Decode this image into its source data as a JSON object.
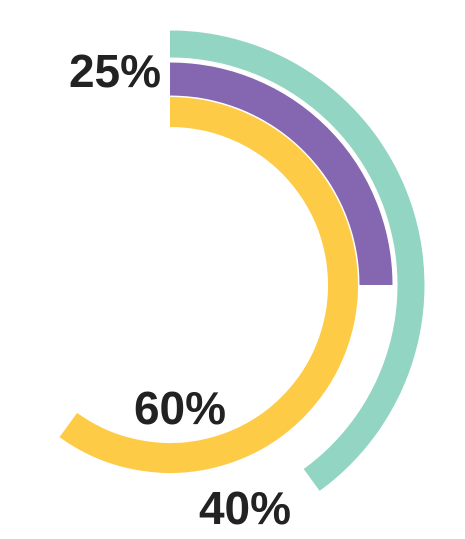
{
  "chart_data": {
    "type": "radial_bar",
    "values": [
      40,
      25,
      60
    ],
    "value_labels": [
      "40%",
      "25%",
      "60%"
    ],
    "colors": [
      "#93d5c3",
      "#8467b0",
      "#fecb47"
    ],
    "ylim": [
      0,
      100
    ]
  }
}
